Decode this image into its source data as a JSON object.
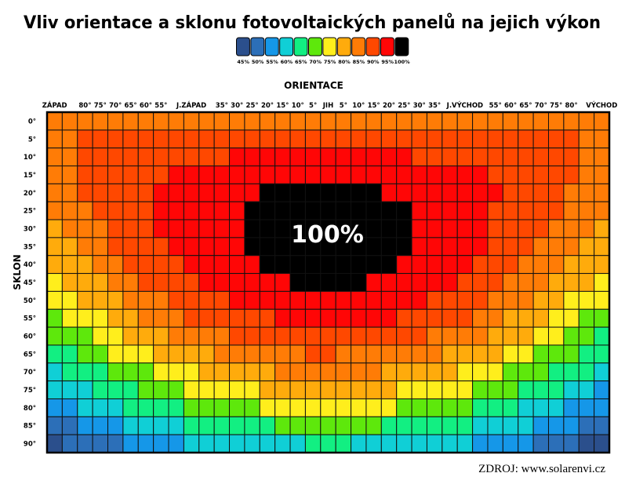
{
  "chart_data": {
    "type": "heatmap",
    "title": "Vliv orientace a sklonu fotovoltaických panelů na jejich výkon",
    "xlabel": "ORIENTACE",
    "ylabel": "SKLON",
    "x_tick_labels": [
      "ZÁPAD",
      "",
      "80°",
      "75°",
      "70°",
      "65°",
      "60°",
      "55°",
      "",
      "J.ZÁPAD",
      "",
      "35°",
      "30°",
      "25°",
      "20°",
      "15°",
      "10°",
      "5°",
      "JIH",
      "5°",
      "10°",
      "15°",
      "20°",
      "25°",
      "30°",
      "35°",
      "",
      "J.VÝCHOD",
      "",
      "55°",
      "60°",
      "65°",
      "70°",
      "75°",
      "80°",
      "",
      "VÝCHOD"
    ],
    "y_tick_labels": [
      "0°",
      "5°",
      "10°",
      "15°",
      "20°",
      "25°",
      "30°",
      "35°",
      "40°",
      "45°",
      "50°",
      "55°",
      "60°",
      "65°",
      "70°",
      "75°",
      "80°",
      "85°",
      "90°"
    ],
    "legend": {
      "levels": [
        45,
        50,
        55,
        60,
        65,
        70,
        75,
        80,
        85,
        90,
        95,
        100
      ],
      "labels": [
        "45%",
        "50%",
        "55%",
        "60%",
        "65%",
        "70%",
        "75%",
        "80%",
        "85%",
        "90%",
        "95%",
        "100%"
      ],
      "colors": [
        "#2b4f8c",
        "#2c6fb8",
        "#1597e8",
        "#10cfd6",
        "#12ef82",
        "#5ee80c",
        "#ffee1c",
        "#ffab0c",
        "#ff7c06",
        "#ff4800",
        "#ff0606",
        "#000000"
      ],
      "placement": "top-center"
    },
    "annotation": "100%",
    "unit": "%",
    "values": [
      [
        85,
        85,
        85,
        85,
        85,
        85,
        85,
        85,
        85,
        85,
        85,
        85,
        85,
        85,
        85,
        85,
        85,
        85,
        85,
        85,
        85,
        85,
        85,
        85,
        85,
        85,
        85,
        85,
        85,
        85,
        85,
        85,
        85,
        85,
        85,
        85,
        85
      ],
      [
        85,
        85,
        90,
        90,
        90,
        90,
        90,
        90,
        90,
        90,
        90,
        90,
        90,
        90,
        90,
        90,
        90,
        90,
        90,
        90,
        90,
        90,
        90,
        90,
        90,
        90,
        90,
        90,
        90,
        90,
        90,
        90,
        90,
        90,
        90,
        85,
        85
      ],
      [
        85,
        85,
        90,
        90,
        90,
        90,
        90,
        90,
        90,
        90,
        90,
        90,
        95,
        95,
        95,
        95,
        95,
        95,
        95,
        95,
        95,
        95,
        95,
        95,
        90,
        90,
        90,
        90,
        90,
        90,
        90,
        90,
        90,
        90,
        90,
        85,
        85
      ],
      [
        85,
        85,
        90,
        90,
        90,
        90,
        90,
        90,
        95,
        95,
        95,
        95,
        95,
        95,
        95,
        95,
        95,
        95,
        95,
        95,
        95,
        95,
        95,
        95,
        95,
        95,
        95,
        95,
        95,
        90,
        90,
        90,
        90,
        90,
        90,
        85,
        85
      ],
      [
        85,
        85,
        90,
        90,
        90,
        90,
        90,
        95,
        95,
        95,
        95,
        95,
        95,
        95,
        100,
        100,
        100,
        100,
        100,
        100,
        100,
        100,
        95,
        95,
        95,
        95,
        95,
        95,
        95,
        95,
        90,
        90,
        90,
        90,
        85,
        85,
        85
      ],
      [
        85,
        85,
        85,
        90,
        90,
        90,
        90,
        95,
        95,
        95,
        95,
        95,
        95,
        100,
        100,
        100,
        100,
        100,
        100,
        100,
        100,
        100,
        100,
        100,
        95,
        95,
        95,
        95,
        95,
        90,
        90,
        90,
        90,
        90,
        85,
        85,
        85
      ],
      [
        80,
        85,
        85,
        85,
        90,
        90,
        90,
        95,
        95,
        95,
        95,
        95,
        95,
        100,
        100,
        100,
        100,
        100,
        100,
        100,
        100,
        100,
        100,
        100,
        95,
        95,
        95,
        95,
        95,
        90,
        90,
        90,
        90,
        85,
        85,
        85,
        80
      ],
      [
        80,
        80,
        85,
        85,
        90,
        90,
        90,
        90,
        95,
        95,
        95,
        95,
        95,
        100,
        100,
        100,
        100,
        100,
        100,
        100,
        100,
        100,
        100,
        100,
        95,
        95,
        95,
        95,
        95,
        90,
        90,
        90,
        85,
        85,
        85,
        80,
        80
      ],
      [
        80,
        80,
        80,
        85,
        85,
        90,
        90,
        90,
        90,
        95,
        95,
        95,
        95,
        95,
        100,
        100,
        100,
        100,
        100,
        100,
        100,
        100,
        100,
        95,
        95,
        95,
        95,
        95,
        90,
        90,
        90,
        85,
        85,
        85,
        80,
        80,
        80
      ],
      [
        75,
        80,
        80,
        80,
        85,
        85,
        90,
        90,
        90,
        90,
        95,
        95,
        95,
        95,
        95,
        95,
        100,
        100,
        100,
        100,
        100,
        95,
        95,
        95,
        95,
        95,
        95,
        90,
        90,
        90,
        85,
        85,
        85,
        80,
        80,
        80,
        75
      ],
      [
        75,
        75,
        80,
        80,
        80,
        85,
        85,
        85,
        90,
        90,
        90,
        90,
        95,
        95,
        95,
        95,
        95,
        95,
        95,
        95,
        95,
        95,
        95,
        95,
        95,
        90,
        90,
        90,
        90,
        85,
        85,
        85,
        80,
        80,
        75,
        75,
        75
      ],
      [
        70,
        75,
        75,
        75,
        80,
        80,
        85,
        85,
        85,
        90,
        90,
        90,
        90,
        90,
        90,
        95,
        95,
        95,
        95,
        95,
        95,
        95,
        95,
        90,
        90,
        90,
        90,
        90,
        85,
        85,
        80,
        80,
        80,
        75,
        75,
        70,
        70
      ],
      [
        70,
        70,
        70,
        75,
        75,
        80,
        80,
        80,
        85,
        85,
        85,
        85,
        90,
        90,
        90,
        90,
        90,
        90,
        90,
        90,
        90,
        90,
        90,
        90,
        90,
        85,
        85,
        85,
        85,
        80,
        80,
        80,
        75,
        75,
        70,
        70,
        65
      ],
      [
        65,
        65,
        70,
        70,
        75,
        75,
        75,
        80,
        80,
        80,
        80,
        85,
        85,
        85,
        85,
        85,
        85,
        90,
        90,
        85,
        85,
        85,
        85,
        85,
        85,
        85,
        80,
        80,
        80,
        80,
        75,
        75,
        70,
        70,
        70,
        65,
        65
      ],
      [
        60,
        65,
        65,
        65,
        70,
        70,
        70,
        75,
        75,
        75,
        80,
        80,
        80,
        80,
        80,
        85,
        85,
        85,
        85,
        85,
        85,
        85,
        80,
        80,
        80,
        80,
        80,
        75,
        75,
        75,
        70,
        70,
        70,
        65,
        65,
        65,
        60
      ],
      [
        60,
        60,
        60,
        65,
        65,
        65,
        70,
        70,
        70,
        75,
        75,
        75,
        75,
        75,
        80,
        80,
        80,
        80,
        80,
        80,
        80,
        80,
        80,
        75,
        75,
        75,
        75,
        75,
        70,
        70,
        70,
        65,
        65,
        65,
        60,
        60,
        55
      ],
      [
        55,
        55,
        60,
        60,
        60,
        65,
        65,
        65,
        65,
        70,
        70,
        70,
        70,
        70,
        75,
        75,
        75,
        75,
        75,
        75,
        75,
        75,
        75,
        70,
        70,
        70,
        70,
        70,
        65,
        65,
        65,
        60,
        60,
        60,
        55,
        55,
        55
      ],
      [
        50,
        50,
        55,
        55,
        55,
        60,
        60,
        60,
        60,
        65,
        65,
        65,
        65,
        65,
        65,
        70,
        70,
        70,
        70,
        70,
        70,
        70,
        65,
        65,
        65,
        65,
        65,
        65,
        60,
        60,
        60,
        60,
        55,
        55,
        55,
        50,
        50
      ],
      [
        45,
        50,
        50,
        50,
        50,
        55,
        55,
        55,
        55,
        60,
        60,
        60,
        60,
        60,
        60,
        60,
        60,
        65,
        65,
        65,
        60,
        60,
        60,
        60,
        60,
        60,
        60,
        60,
        55,
        55,
        55,
        55,
        50,
        50,
        50,
        45,
        45
      ]
    ]
  },
  "source": "ZDROJ: www.solarenvi.cz"
}
